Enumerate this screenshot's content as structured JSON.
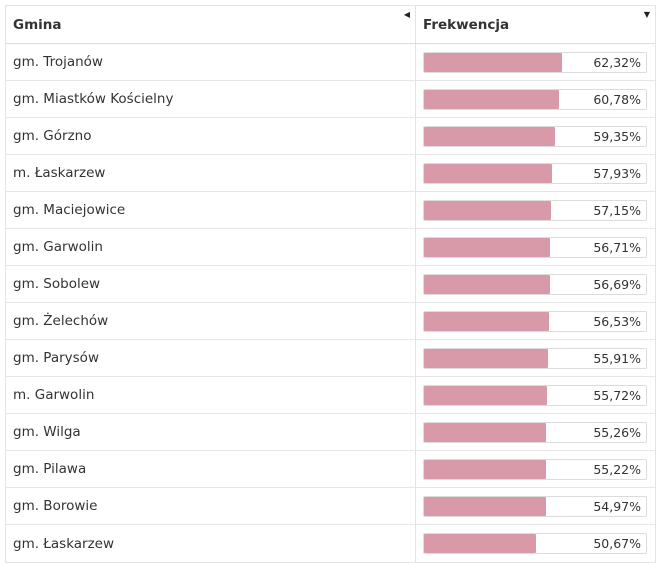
{
  "header": {
    "col_name": "Gmina",
    "col_value": "Frekwencja",
    "sort_left_icon": "triangle-left-icon",
    "sort_down_icon": "triangle-down-icon"
  },
  "bar_color": "#d89aa8",
  "rows": [
    {
      "name": "gm. Trojanów",
      "value": "62,32%",
      "fraction": 0.6232
    },
    {
      "name": "gm. Miastków Kościelny",
      "value": "60,78%",
      "fraction": 0.6078
    },
    {
      "name": "gm. Górzno",
      "value": "59,35%",
      "fraction": 0.5935
    },
    {
      "name": "m. Łaskarzew",
      "value": "57,93%",
      "fraction": 0.5793
    },
    {
      "name": "gm. Maciejowice",
      "value": "57,15%",
      "fraction": 0.5715
    },
    {
      "name": "gm. Garwolin",
      "value": "56,71%",
      "fraction": 0.5671
    },
    {
      "name": "gm. Sobolew",
      "value": "56,69%",
      "fraction": 0.5669
    },
    {
      "name": "gm. Żelechów",
      "value": "56,53%",
      "fraction": 0.5653
    },
    {
      "name": "gm. Parysów",
      "value": "55,91%",
      "fraction": 0.5591
    },
    {
      "name": "m. Garwolin",
      "value": "55,72%",
      "fraction": 0.5572
    },
    {
      "name": "gm. Wilga",
      "value": "55,26%",
      "fraction": 0.5526
    },
    {
      "name": "gm. Pilawa",
      "value": "55,22%",
      "fraction": 0.5522
    },
    {
      "name": "gm. Borowie",
      "value": "54,97%",
      "fraction": 0.5497
    },
    {
      "name": "gm. Łaskarzew",
      "value": "50,67%",
      "fraction": 0.5067
    }
  ]
}
